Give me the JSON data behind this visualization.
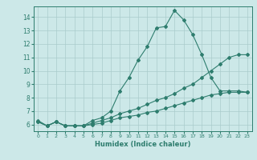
{
  "xlabel": "Humidex (Indice chaleur)",
  "ylabel": "",
  "bg_color": "#cce8e8",
  "line_color": "#2e7d6e",
  "grid_color": "#aacccc",
  "xlim": [
    -0.5,
    23.5
  ],
  "ylim": [
    5.5,
    14.8
  ],
  "xticks": [
    0,
    1,
    2,
    3,
    4,
    5,
    6,
    7,
    8,
    9,
    10,
    11,
    12,
    13,
    14,
    15,
    16,
    17,
    18,
    19,
    20,
    21,
    22,
    23
  ],
  "yticks": [
    6,
    7,
    8,
    9,
    10,
    11,
    12,
    13,
    14
  ],
  "line1_x": [
    0,
    1,
    2,
    3,
    4,
    5,
    6,
    7,
    8,
    9,
    10,
    11,
    12,
    13,
    14,
    15,
    16,
    17,
    18,
    19,
    20,
    21,
    22,
    23
  ],
  "line1_y": [
    6.3,
    5.9,
    6.2,
    5.9,
    5.9,
    5.9,
    6.3,
    6.5,
    7.0,
    8.5,
    9.5,
    10.8,
    11.8,
    13.2,
    13.3,
    14.5,
    13.8,
    12.7,
    11.2,
    9.5,
    8.5,
    8.5,
    8.5,
    8.4
  ],
  "line2_x": [
    0,
    1,
    2,
    3,
    4,
    5,
    6,
    7,
    8,
    9,
    10,
    11,
    12,
    13,
    14,
    15,
    16,
    17,
    18,
    19,
    20,
    21,
    22,
    23
  ],
  "line2_y": [
    6.2,
    5.9,
    6.2,
    5.9,
    5.9,
    5.9,
    6.1,
    6.3,
    6.5,
    6.8,
    7.0,
    7.2,
    7.5,
    7.8,
    8.0,
    8.3,
    8.7,
    9.0,
    9.5,
    10.0,
    10.5,
    11.0,
    11.2,
    11.2
  ],
  "line3_x": [
    0,
    1,
    2,
    3,
    4,
    5,
    6,
    7,
    8,
    9,
    10,
    11,
    12,
    13,
    14,
    15,
    16,
    17,
    18,
    19,
    20,
    21,
    22,
    23
  ],
  "line3_y": [
    6.2,
    5.9,
    6.2,
    5.9,
    5.9,
    5.9,
    6.0,
    6.1,
    6.3,
    6.5,
    6.6,
    6.7,
    6.9,
    7.0,
    7.2,
    7.4,
    7.6,
    7.8,
    8.0,
    8.2,
    8.3,
    8.4,
    8.4,
    8.4
  ]
}
